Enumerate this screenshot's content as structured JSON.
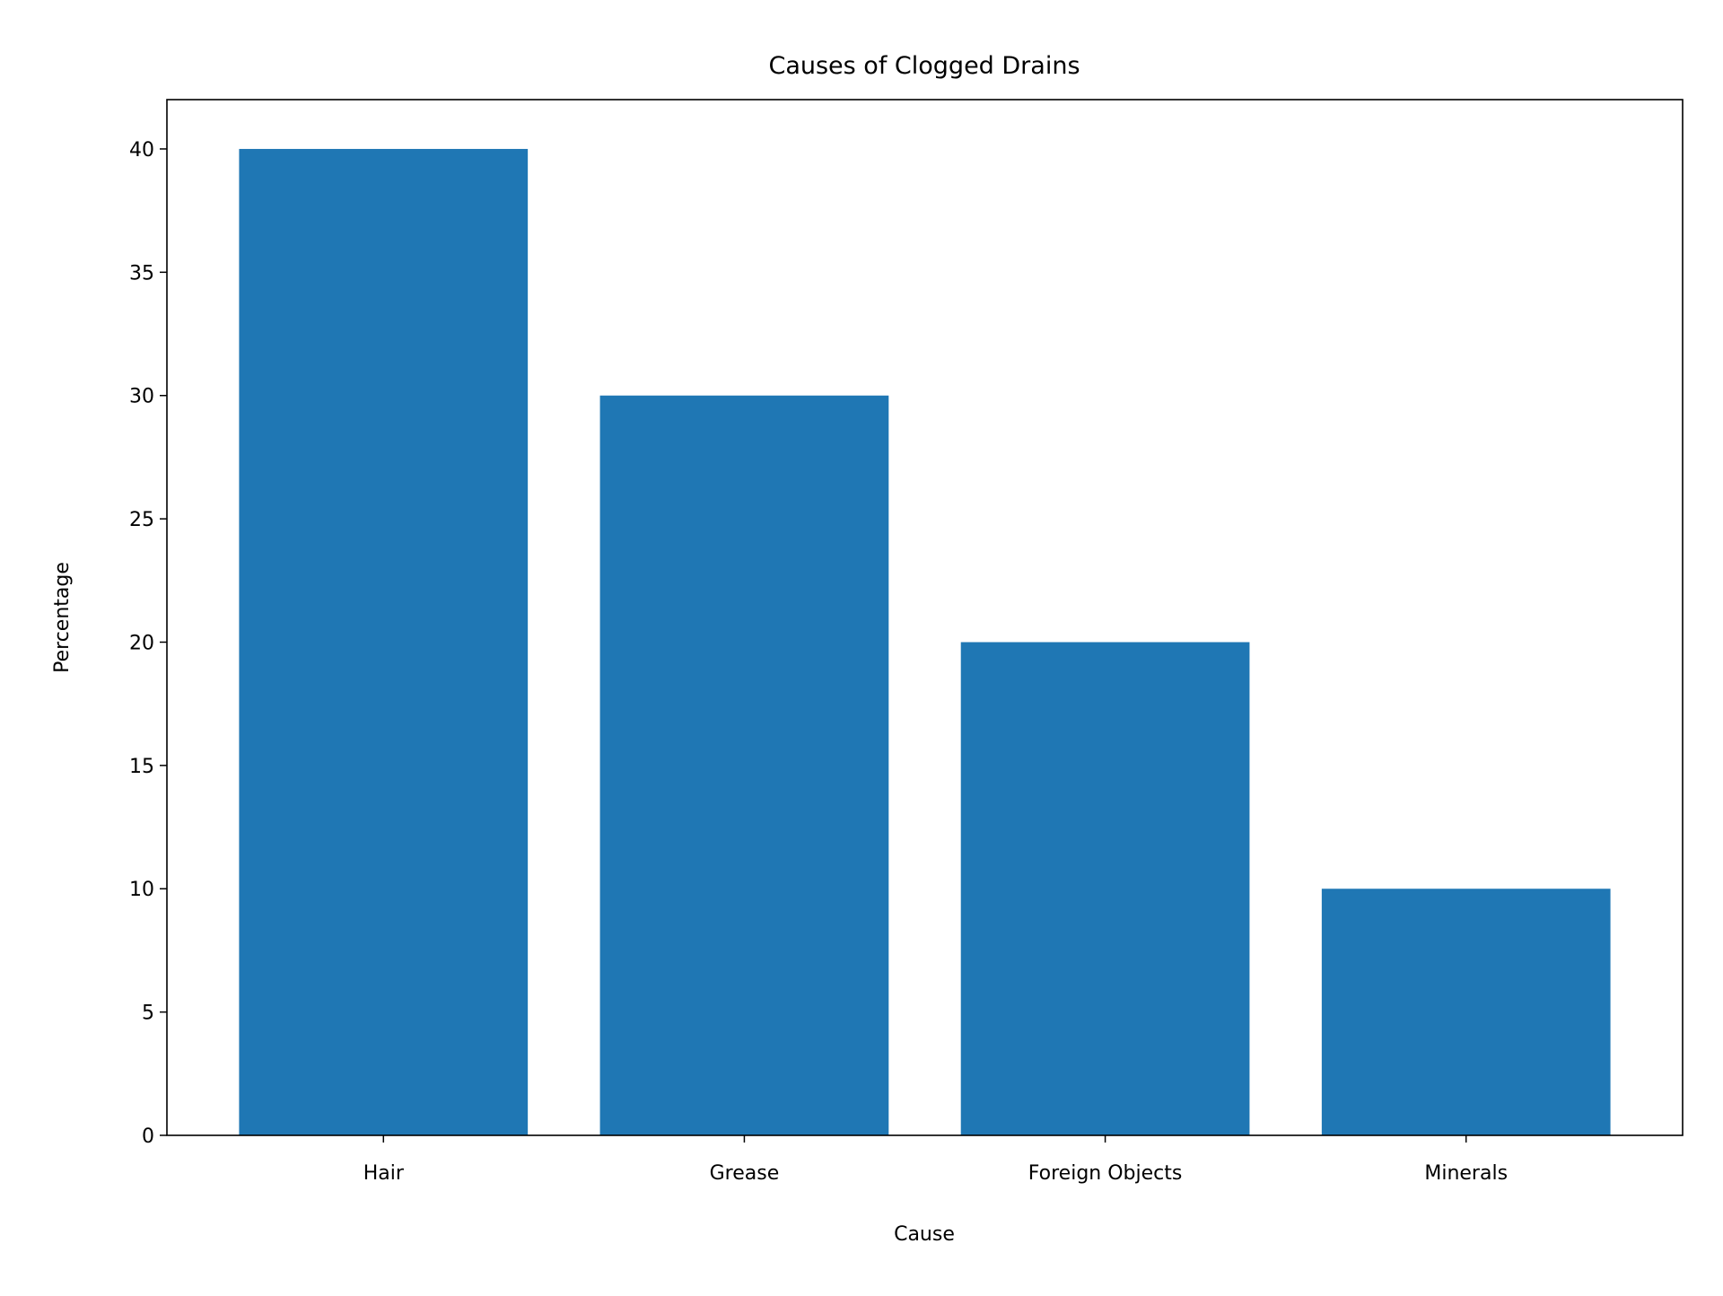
{
  "chart_data": {
    "type": "bar",
    "title": "Causes of Clogged Drains",
    "xlabel": "Cause",
    "ylabel": "Percentage",
    "categories": [
      "Hair",
      "Grease",
      "Foreign Objects",
      "Minerals"
    ],
    "values": [
      40,
      30,
      20,
      10
    ],
    "ylim": [
      0,
      42
    ],
    "yticks": [
      0,
      5,
      10,
      15,
      20,
      25,
      30,
      35,
      40
    ],
    "bar_color": "#1f77b4",
    "grid": false,
    "legend": "none"
  }
}
